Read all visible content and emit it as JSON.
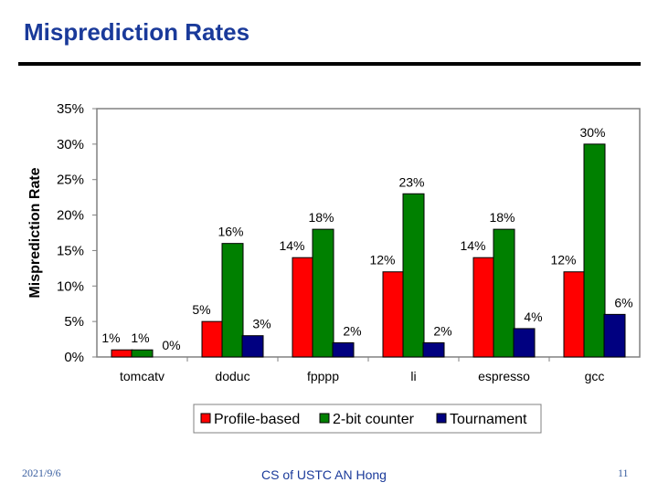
{
  "slide": {
    "title": "Misprediction Rates",
    "footer_date": "2021/9/6",
    "footer_author": "CS of USTC AN Hong",
    "page_number": "11"
  },
  "chart_data": {
    "type": "bar",
    "title": "",
    "ylabel": "Misprediction Rate",
    "xlabel": "",
    "ylim": [
      0,
      35
    ],
    "yticks": [
      "0%",
      "5%",
      "10%",
      "15%",
      "20%",
      "25%",
      "30%",
      "35%"
    ],
    "ytick_values": [
      0,
      5,
      10,
      15,
      20,
      25,
      30,
      35
    ],
    "categories": [
      "tomcatv",
      "doduc",
      "fpppp",
      "li",
      "espresso",
      "gcc"
    ],
    "series": [
      {
        "name": "Profile-based",
        "color": "#ff0000",
        "values": [
          1,
          5,
          14,
          12,
          14,
          12
        ],
        "labels": [
          "1%",
          "5%",
          "14%",
          "12%",
          "14%",
          "12%"
        ]
      },
      {
        "name": "2-bit counter",
        "color": "#008000",
        "values": [
          1,
          16,
          18,
          23,
          18,
          30
        ],
        "labels": [
          "1%",
          "16%",
          "18%",
          "23%",
          "18%",
          "30%"
        ]
      },
      {
        "name": "Tournament",
        "color": "#000080",
        "values": [
          0,
          3,
          2,
          2,
          4,
          6
        ],
        "labels": [
          "0%",
          "3%",
          "2%",
          "2%",
          "4%",
          "6%"
        ]
      }
    ],
    "grid": false,
    "legend_position": "bottom"
  }
}
